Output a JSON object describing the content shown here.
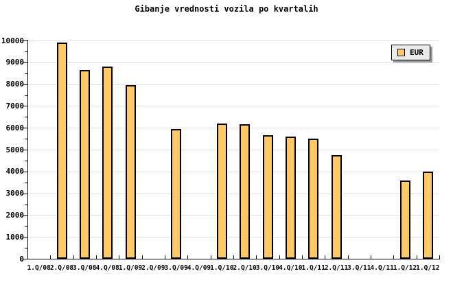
{
  "title": "Gibanje vrednosti vozila po kvartalih",
  "legend": {
    "items": [
      {
        "label": "EUR",
        "swatch_color": "#FFC966"
      }
    ],
    "position": "top-right"
  },
  "colors": {
    "background": "#FFFFFF",
    "bar_fill": "#FFC966",
    "bar_border": "#000000",
    "grid": "#E0E0E0",
    "axis": "#000000",
    "text": "#000000",
    "legend_bg": "#EBEBEB",
    "legend_border": "#000000",
    "legend_shadow": "#999999"
  },
  "chart_data": {
    "type": "bar",
    "title": "Gibanje vrednosti vozila po kvartalih",
    "categories": [
      "1.Q/08",
      "2.Q/08",
      "3.Q/08",
      "4.Q/08",
      "1.Q/09",
      "2.Q/09",
      "3.Q/09",
      "4.Q/09",
      "1.Q/10",
      "2.Q/10",
      "3.Q/10",
      "4.Q/10",
      "1.Q/11",
      "2.Q/11",
      "3.Q/11",
      "4.Q/11",
      "1.Q/12",
      "1.Q/12"
    ],
    "series": [
      {
        "name": "EUR",
        "values": [
          null,
          9900,
          8650,
          8800,
          7950,
          null,
          5950,
          null,
          6200,
          6150,
          5650,
          5600,
          5500,
          4750,
          null,
          null,
          3600,
          4000
        ]
      }
    ],
    "xlabel": "",
    "ylabel": "",
    "ylim": [
      0,
      10000
    ],
    "y_major_tick_step": 1000,
    "y_minor_tick_step": 500,
    "y_tick_labels": [
      "0",
      "1000",
      "2000",
      "3000",
      "4000",
      "5000",
      "6000",
      "7000",
      "8000",
      "9000",
      "10000"
    ],
    "grid": true,
    "legend_position": "top-right"
  }
}
